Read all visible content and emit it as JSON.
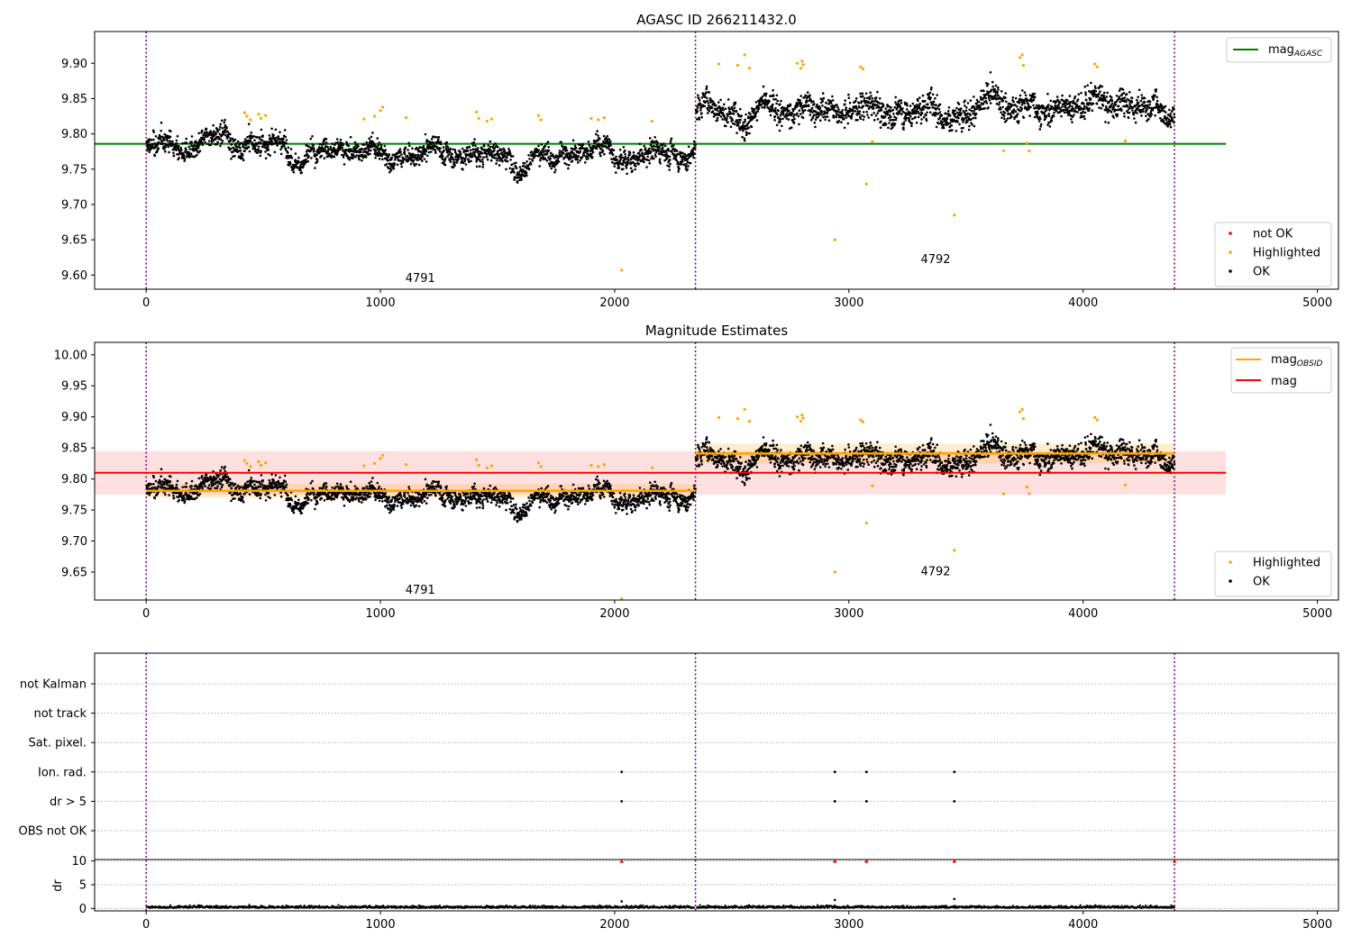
{
  "chart_data": [
    {
      "type": "scatter",
      "title": "AGASC ID 266211432.0",
      "xlim": [
        -220,
        5090
      ],
      "ylim": [
        9.58,
        9.945
      ],
      "xticks": [
        0,
        1000,
        2000,
        3000,
        4000,
        5000
      ],
      "yticks": [
        9.6,
        9.65,
        9.7,
        9.75,
        9.8,
        9.85,
        9.9
      ],
      "obs_boundaries": [
        0,
        2345,
        4390
      ],
      "obs_labels": [
        {
          "text": "4791",
          "x": 1170,
          "y": 9.59
        },
        {
          "text": "4792",
          "x": 3370,
          "y": 9.617
        }
      ],
      "mag_agasc": {
        "value": 9.786,
        "x": [
          -220,
          4610
        ],
        "color": "#008000"
      },
      "segments": [
        {
          "x0": 0,
          "x1": 2345,
          "mean": 9.78,
          "sd": 0.013
        },
        {
          "x0": 2345,
          "x1": 4390,
          "mean": 9.84,
          "sd": 0.016
        }
      ],
      "highlighted": [
        [
          420,
          9.83
        ],
        [
          430,
          9.825
        ],
        [
          445,
          9.82
        ],
        [
          480,
          9.828
        ],
        [
          490,
          9.822
        ],
        [
          510,
          9.826
        ],
        [
          930,
          9.821
        ],
        [
          975,
          9.825
        ],
        [
          1000,
          9.833
        ],
        [
          1010,
          9.838
        ],
        [
          1110,
          9.823
        ],
        [
          1410,
          9.831
        ],
        [
          1420,
          9.822
        ],
        [
          1455,
          9.818
        ],
        [
          1475,
          9.821
        ],
        [
          1675,
          9.826
        ],
        [
          1685,
          9.82
        ],
        [
          1900,
          9.822
        ],
        [
          1930,
          9.82
        ],
        [
          1955,
          9.823
        ],
        [
          2160,
          9.818
        ],
        [
          2030,
          9.607
        ],
        [
          2445,
          9.899
        ],
        [
          2525,
          9.897
        ],
        [
          2555,
          9.912
        ],
        [
          2575,
          9.893
        ],
        [
          2780,
          9.9
        ],
        [
          2795,
          9.893
        ],
        [
          2800,
          9.903
        ],
        [
          2805,
          9.898
        ],
        [
          2940,
          9.65
        ],
        [
          3050,
          9.895
        ],
        [
          3060,
          9.892
        ],
        [
          3075,
          9.729
        ],
        [
          3100,
          9.789
        ],
        [
          3450,
          9.685
        ],
        [
          3660,
          9.776
        ],
        [
          3730,
          9.908
        ],
        [
          3740,
          9.912
        ],
        [
          3745,
          9.897
        ],
        [
          3760,
          9.787
        ],
        [
          3770,
          9.776
        ],
        [
          4050,
          9.899
        ],
        [
          4060,
          9.895
        ],
        [
          4180,
          9.79
        ]
      ],
      "legend": [
        {
          "label": "not OK",
          "kind": "dot",
          "color": "#ff0000"
        },
        {
          "label": "Highlighted",
          "kind": "dot",
          "color": "#ffa500"
        },
        {
          "label": "OK",
          "kind": "dot",
          "color": "#000000"
        }
      ],
      "line_legend": {
        "label": "mag",
        "sub": "AGASC",
        "color": "#008000"
      }
    },
    {
      "type": "scatter",
      "title": "Magnitude Estimates",
      "xlim": [
        -220,
        5090
      ],
      "ylim": [
        9.605,
        10.02
      ],
      "xticks": [
        0,
        1000,
        2000,
        3000,
        4000,
        5000
      ],
      "yticks": [
        9.65,
        9.7,
        9.75,
        9.8,
        9.85,
        9.9,
        9.95,
        10.0
      ],
      "obs_boundaries": [
        0,
        2345,
        4390
      ],
      "obs_labels": [
        {
          "text": "4791",
          "x": 1170,
          "y": 9.615
        },
        {
          "text": "4792",
          "x": 3370,
          "y": 9.645
        }
      ],
      "mag": {
        "value": 9.81,
        "band": [
          9.775,
          9.845
        ],
        "x": [
          -220,
          4610
        ],
        "color": "#ff0000"
      },
      "mag_obsid": [
        {
          "x0": 0,
          "x1": 2345,
          "value": 9.781,
          "band": [
            9.77,
            9.792
          ]
        },
        {
          "x0": 2345,
          "x1": 4390,
          "value": 9.841,
          "band": [
            9.825,
            9.857
          ]
        }
      ],
      "legend": [
        {
          "label": "Highlighted",
          "kind": "dot",
          "color": "#ffa500"
        },
        {
          "label": "OK",
          "kind": "dot",
          "color": "#000000"
        }
      ],
      "line_legend": [
        {
          "label": "mag",
          "sub": "OBSID",
          "color": "#ffa500"
        },
        {
          "label": "mag",
          "sub": "",
          "color": "#ff0000"
        }
      ]
    },
    {
      "type": "scatter",
      "xlim": [
        -220,
        5090
      ],
      "xticks": [
        0,
        1000,
        2000,
        3000,
        4000,
        5000
      ],
      "flag_rows": [
        "not Kalman",
        "not track",
        "Sat. pixel.",
        "Ion. rad.",
        "dr > 5",
        "OBS not OK"
      ],
      "flag_points": {
        "Ion. rad.": [
          2030,
          2940,
          3075,
          3450
        ],
        "dr > 5": [
          2030,
          2940,
          3075,
          3450
        ]
      },
      "dr": {
        "ylabel": "dr",
        "yticks": [
          0,
          5,
          10
        ],
        "ylim": [
          -0.5,
          10.3
        ],
        "clipped_at": 10,
        "clipped_x": [
          2030,
          2940,
          3075,
          3450,
          4390
        ],
        "spikes": [
          [
            2030,
            1.5
          ],
          [
            2940,
            1.8
          ],
          [
            3450,
            2.0
          ]
        ]
      }
    }
  ]
}
